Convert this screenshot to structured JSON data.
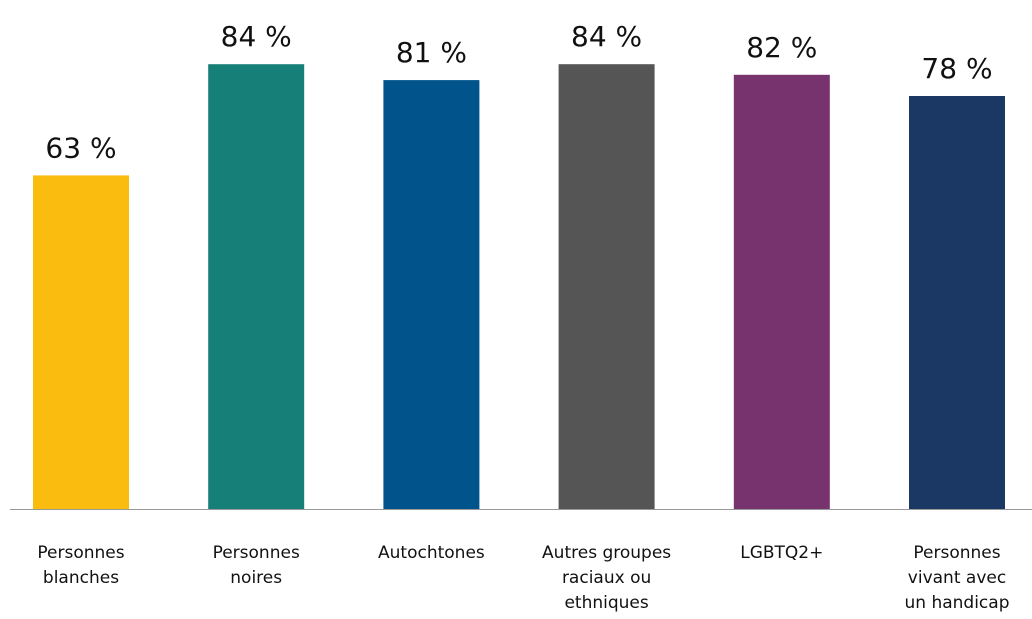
{
  "chart_data": {
    "type": "bar",
    "title": "",
    "xlabel": "",
    "ylabel": "",
    "ylim": [
      0,
      100
    ],
    "grid": false,
    "legend": "none",
    "categories": [
      [
        "Personnes",
        "blanches"
      ],
      [
        "Personnes",
        "noires"
      ],
      [
        "Autochtones"
      ],
      [
        "Autres groupes",
        "raciaux ou",
        "ethniques"
      ],
      [
        "LGBTQ2+"
      ],
      [
        "Personnes",
        "vivant avec",
        "un handicap"
      ]
    ],
    "values": [
      63,
      84,
      81,
      84,
      82,
      78
    ],
    "value_labels": [
      "63 %",
      "84 %",
      "81 %",
      "84 %",
      "82 %",
      "78 %"
    ],
    "colors": [
      "#FBBC10",
      "#157F78",
      "#00548B",
      "#555555",
      "#77336E",
      "#1B3764"
    ],
    "axis_color": "#999999"
  }
}
